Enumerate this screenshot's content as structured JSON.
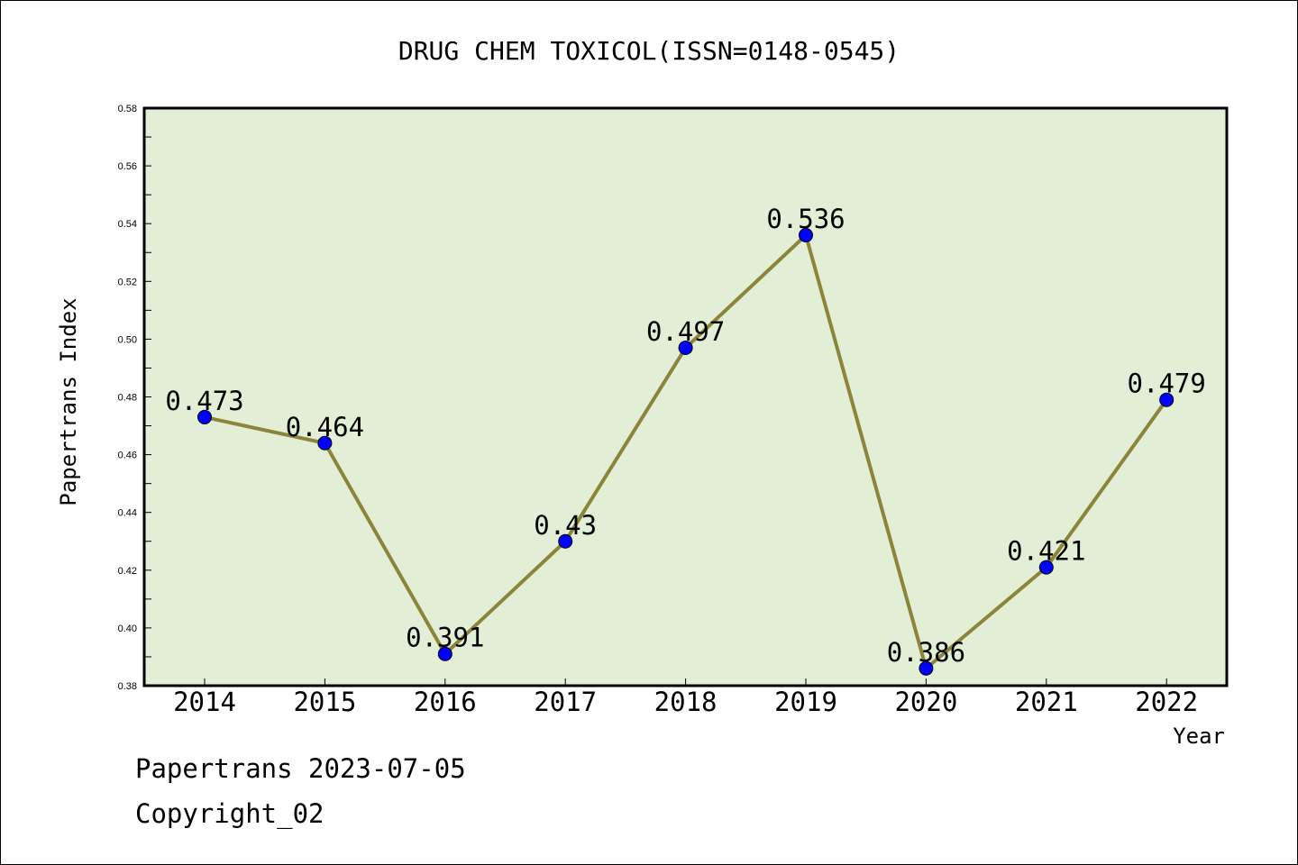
{
  "chart_data": {
    "type": "line",
    "title": "DRUG CHEM TOXICOL(ISSN=0148-0545)",
    "xlabel": "Year",
    "ylabel": "Papertrans Index",
    "categories": [
      "2014",
      "2015",
      "2016",
      "2017",
      "2018",
      "2019",
      "2020",
      "2021",
      "2022"
    ],
    "values": [
      0.473,
      0.464,
      0.391,
      0.43,
      0.497,
      0.536,
      0.386,
      0.421,
      0.479
    ],
    "data_labels": [
      "0.473",
      "0.464",
      "0.391",
      "0.43",
      "0.497",
      "0.536",
      "0.386",
      "0.421",
      "0.479"
    ],
    "ylim": [
      0.38,
      0.58
    ],
    "yticks": [
      "0.38",
      "0.40",
      "0.42",
      "0.44",
      "0.46",
      "0.48",
      "0.50",
      "0.52",
      "0.54",
      "0.56",
      "0.58"
    ],
    "grid": false,
    "colors": {
      "plot_background": "#e2efd6",
      "line": "#8b8439",
      "marker": "#0000ff"
    }
  },
  "footer": {
    "line1": "Papertrans 2023-07-05",
    "line2": "Copyright_02"
  }
}
